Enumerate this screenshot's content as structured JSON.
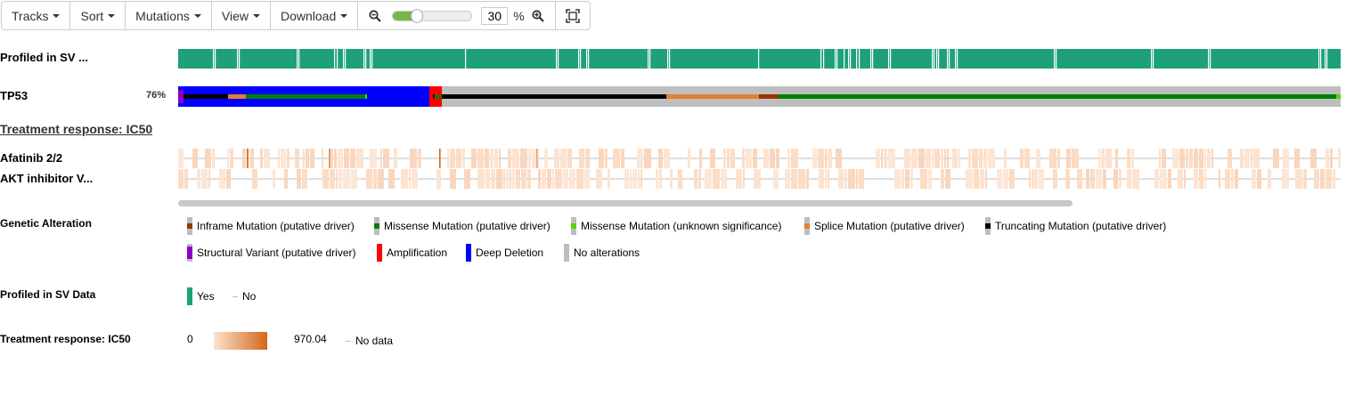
{
  "toolbar": {
    "menus": [
      {
        "name": "tracks-menu",
        "label": "Tracks"
      },
      {
        "name": "sort-menu",
        "label": "Sort"
      },
      {
        "name": "mutations-menu",
        "label": "Mutations"
      },
      {
        "name": "view-menu",
        "label": "View"
      },
      {
        "name": "download-menu",
        "label": "Download"
      }
    ],
    "zoom_value": "30",
    "zoom_unit": "%",
    "zoom_slider_fraction": 0.3
  },
  "tracks": {
    "profiled_label": "Profiled in SV ...",
    "gene_label": "TP53",
    "gene_altered_pct": "76%",
    "section_title": "Treatment response: IC50",
    "drug1_label": "Afatinib 2/2",
    "drug2_label": "AKT inhibitor V..."
  },
  "legend": {
    "genetic": {
      "title": "Genetic Alteration",
      "items": [
        {
          "label": "Inframe Mutation (putative driver)",
          "color": "#993404",
          "kind": "mutation"
        },
        {
          "label": "Missense Mutation (putative driver)",
          "color": "#008000",
          "kind": "mutation"
        },
        {
          "label": "Missense Mutation (unknown significance)",
          "color": "#53d400",
          "kind": "mutation"
        },
        {
          "label": "Splice Mutation (putative driver)",
          "color": "#e5802b",
          "kind": "mutation"
        },
        {
          "label": "Truncating Mutation (putative driver)",
          "color": "#000000",
          "kind": "mutation"
        },
        {
          "label": "Structural Variant (putative driver)",
          "color": "#8b00c9",
          "kind": "sv"
        },
        {
          "label": "Amplification",
          "color": "#ff0000",
          "kind": "full"
        },
        {
          "label": "Deep Deletion",
          "color": "#0000ff",
          "kind": "full"
        },
        {
          "label": "No alterations",
          "color": "#bebebe",
          "kind": "full"
        }
      ]
    },
    "profiled": {
      "title": "Profiled in SV Data",
      "yes": "Yes",
      "no": "No",
      "yes_color": "#1ea17a"
    },
    "ic50": {
      "title": "Treatment response: IC50",
      "min": "0",
      "max": "970.04",
      "no_data": "No data"
    }
  }
}
